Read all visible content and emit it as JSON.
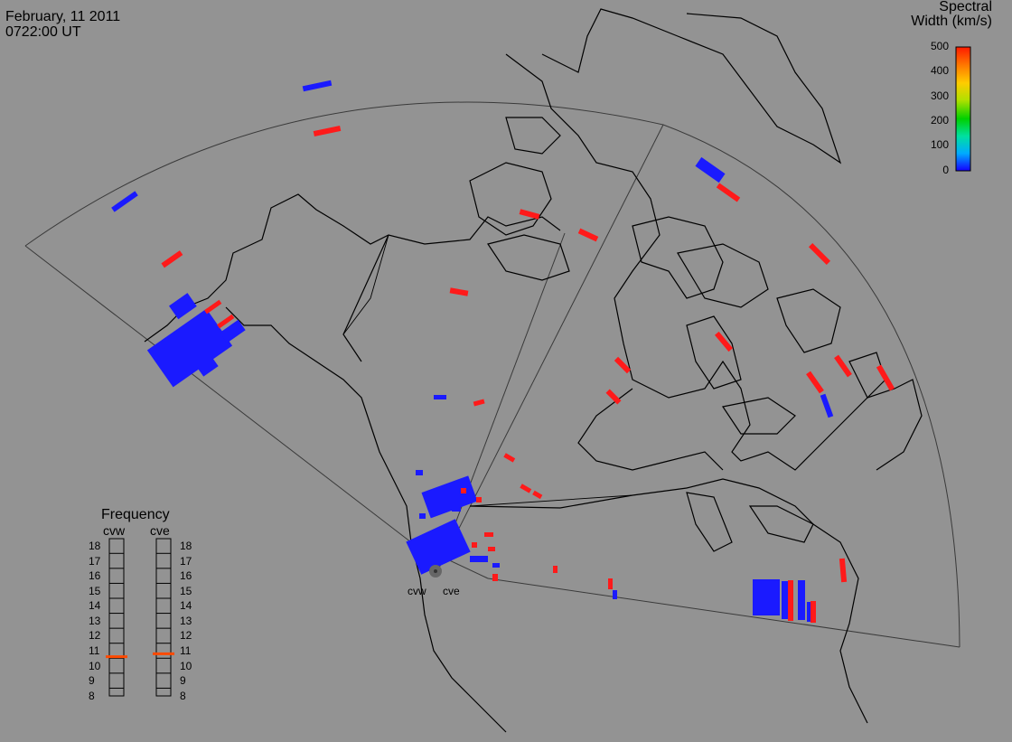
{
  "header": {
    "date": "February, 11 2011",
    "time": "0722:00 UT"
  },
  "legend": {
    "title_line1": "Spectral",
    "title_line2": "Width (km/s)",
    "ticks": [
      "500",
      "400",
      "300",
      "200",
      "100",
      "0"
    ],
    "scale_colors": [
      "#1500ff",
      "#00aaff",
      "#00e0a0",
      "#00d000",
      "#b0e000",
      "#ffcc00",
      "#ff7a00",
      "#ff1a00"
    ],
    "range": [
      0,
      500
    ]
  },
  "frequency": {
    "title": "Frequency",
    "radars": [
      {
        "code": "cvw",
        "value": 10.6
      },
      {
        "code": "cve",
        "value": 10.8
      }
    ],
    "ticks": [
      "18",
      "17",
      "16",
      "15",
      "14",
      "13",
      "12",
      "11",
      "10",
      "9",
      "8"
    ],
    "marker_color": "#ff4a00"
  },
  "sites": {
    "west": "cvw",
    "east": "cve"
  },
  "colors": {
    "low_width": "#1a1aff",
    "high_width": "#ff1a1a",
    "background": "#939393"
  }
}
